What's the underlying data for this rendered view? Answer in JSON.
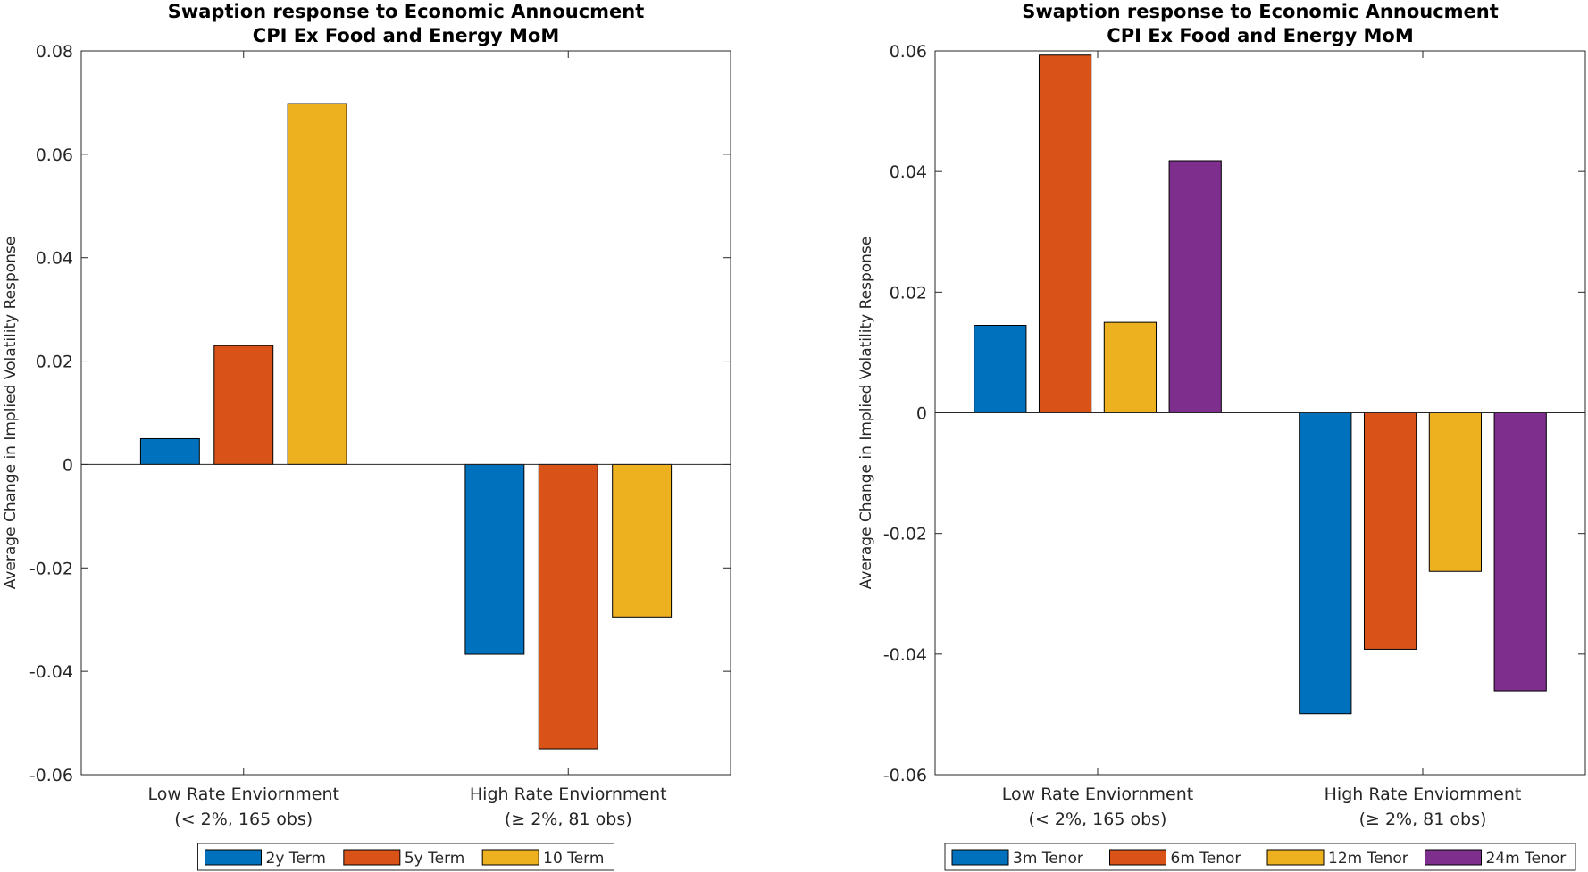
{
  "chart_data": [
    {
      "type": "bar",
      "title": [
        "Swaption response to Economic Annoucment",
        "CPI Ex Food and Energy MoM"
      ],
      "ylabel": "Average Change in Implied Volatility Response",
      "ylim": [
        -0.06,
        0.08
      ],
      "yticks": [
        -0.06,
        -0.04,
        -0.02,
        0,
        0.02,
        0.04,
        0.06,
        0.08
      ],
      "ytick_labels": [
        "-0.06",
        "-0.04",
        "-0.02",
        "0",
        "0.02",
        "0.04",
        "0.06",
        "0.08"
      ],
      "categories": [
        [
          "Low Rate Enviornment",
          "(< 2%, 165 obs)"
        ],
        [
          "High Rate Enviornment",
          "(≥ 2%, 81 obs)"
        ]
      ],
      "series": [
        {
          "name": "2y Term",
          "color": "#0072BD",
          "values": [
            0.005,
            -0.0367
          ]
        },
        {
          "name": "5y Term",
          "color": "#D95319",
          "values": [
            0.023,
            -0.055
          ]
        },
        {
          "name": "10 Term",
          "color": "#EDB120",
          "values": [
            0.0698,
            -0.0295
          ]
        }
      ],
      "legend_position": "bottom-outside",
      "grid": false
    },
    {
      "type": "bar",
      "title": [
        "Swaption response to Economic Annoucment",
        "CPI Ex Food and Energy MoM"
      ],
      "ylabel": "Average Change in Implied Volatility Response",
      "ylim": [
        -0.06,
        0.06
      ],
      "yticks": [
        -0.06,
        -0.04,
        -0.02,
        0,
        0.02,
        0.04,
        0.06
      ],
      "ytick_labels": [
        "-0.06",
        "-0.04",
        "-0.02",
        "0",
        "0.02",
        "0.04",
        "0.06"
      ],
      "categories": [
        [
          "Low Rate Enviornment",
          "(< 2%, 165 obs)"
        ],
        [
          "High Rate Enviornment",
          "(≥ 2%, 81 obs)"
        ]
      ],
      "series": [
        {
          "name": "3m Tenor",
          "color": "#0072BD",
          "values": [
            0.0145,
            -0.0499
          ]
        },
        {
          "name": "6m Tenor",
          "color": "#D95319",
          "values": [
            0.0593,
            -0.0392
          ]
        },
        {
          "name": "12m Tenor",
          "color": "#EDB120",
          "values": [
            0.015,
            -0.0263
          ]
        },
        {
          "name": "24m Tenor",
          "color": "#7E2F8E",
          "values": [
            0.0418,
            -0.0461
          ]
        }
      ],
      "legend_position": "bottom-outside",
      "grid": false
    }
  ]
}
